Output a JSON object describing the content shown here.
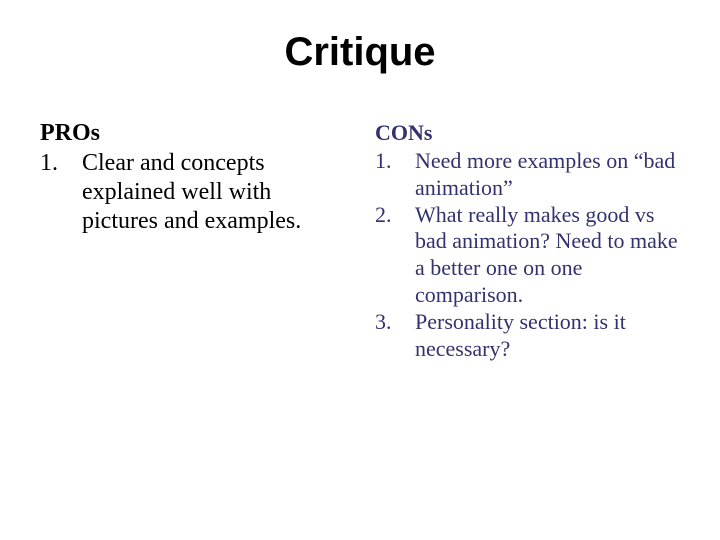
{
  "slide": {
    "title": "Critique",
    "pros": {
      "heading": "PROs",
      "heading_color": "#000000",
      "heading_fontsize": 24,
      "text_color": "#000000",
      "text_fontsize": 24,
      "items": [
        {
          "num": "1.",
          "text": "Clear and concepts explained well with pictures and examples."
        }
      ]
    },
    "cons": {
      "heading": "CONs",
      "heading_color": "#32326e",
      "heading_fontsize": 22,
      "text_color": "#32326e",
      "text_fontsize": 22,
      "items": [
        {
          "num": "1.",
          "text": "Need more examples on “bad animation”"
        },
        {
          "num": "2.",
          "text": "What really makes good vs bad animation? Need to make a better one on one comparison."
        },
        {
          "num": "3.",
          "text": "Personality section: is it necessary?"
        }
      ]
    },
    "background_color": "#ffffff",
    "title_fontsize": 40,
    "title_font": "Verdana",
    "body_font": "Times New Roman"
  }
}
